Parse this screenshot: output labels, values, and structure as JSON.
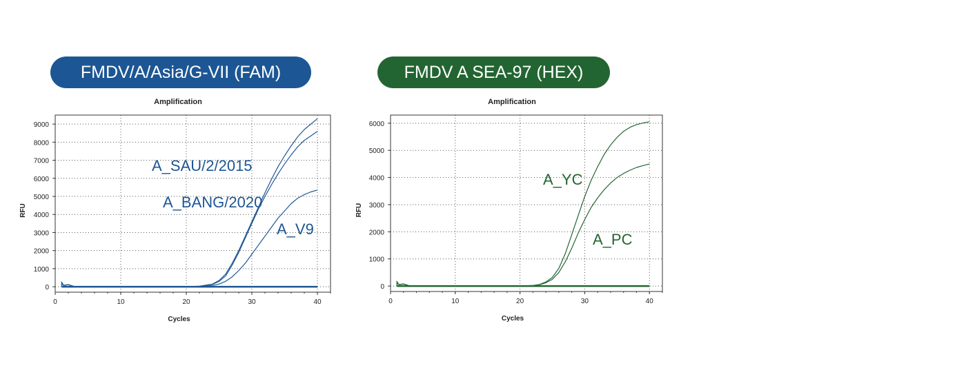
{
  "badges": [
    {
      "text": "FMDV/A/Asia/G-VII (FAM)",
      "color": "#1d5694"
    },
    {
      "text": "FMDV A SEA-97 (HEX)",
      "color": "#236532"
    }
  ],
  "chart_data": [
    {
      "type": "line",
      "title": "Amplification",
      "xlabel": "Cycles",
      "ylabel": "RFU",
      "xlim": [
        0,
        42
      ],
      "ylim": [
        -300,
        9500
      ],
      "xticks": [
        0,
        10,
        20,
        30,
        40
      ],
      "yticks": [
        0,
        1000,
        2000,
        3000,
        4000,
        5000,
        6000,
        7000,
        8000,
        9000
      ],
      "grid": true,
      "color": "#1d5694",
      "series": [
        {
          "name": "A_SAU/2/2015",
          "x": [
            1,
            5,
            10,
            15,
            20,
            22,
            24,
            25,
            26,
            27,
            28,
            29,
            30,
            31,
            32,
            33,
            34,
            35,
            36,
            37,
            38,
            39,
            40
          ],
          "y": [
            0,
            0,
            0,
            0,
            0,
            30,
            150,
            350,
            700,
            1300,
            2000,
            2800,
            3600,
            4400,
            5200,
            5950,
            6650,
            7250,
            7800,
            8300,
            8700,
            9000,
            9300
          ]
        },
        {
          "name": "A_BANG/2020",
          "x": [
            1,
            5,
            10,
            15,
            20,
            22,
            24,
            25,
            26,
            27,
            28,
            29,
            30,
            31,
            32,
            33,
            34,
            35,
            36,
            37,
            38,
            39,
            40
          ],
          "y": [
            0,
            0,
            0,
            0,
            0,
            30,
            130,
            300,
            600,
            1200,
            1900,
            2700,
            3500,
            4300,
            5000,
            5650,
            6250,
            6800,
            7300,
            7750,
            8100,
            8350,
            8600
          ]
        },
        {
          "name": "A_V9",
          "x": [
            1,
            5,
            10,
            15,
            20,
            22,
            24,
            25,
            26,
            27,
            28,
            29,
            30,
            31,
            32,
            33,
            34,
            35,
            36,
            37,
            38,
            39,
            40
          ],
          "y": [
            0,
            0,
            0,
            0,
            0,
            20,
            70,
            150,
            300,
            550,
            900,
            1300,
            1800,
            2300,
            2800,
            3300,
            3800,
            4200,
            4600,
            4900,
            5100,
            5250,
            5350
          ]
        },
        {
          "name": "",
          "x": [
            1,
            5,
            10,
            15,
            20,
            25,
            30,
            35,
            40
          ],
          "y": [
            0,
            0,
            0,
            0,
            0,
            0,
            0,
            0,
            0
          ]
        }
      ],
      "annotations": [
        {
          "text": "A_SAU/2/2015",
          "series": 0
        },
        {
          "text": "A_BANG/2020",
          "series": 1
        },
        {
          "text": "A_V9",
          "series": 2
        }
      ]
    },
    {
      "type": "line",
      "title": "Amplification",
      "xlabel": "Cycles",
      "ylabel": "RFU",
      "xlim": [
        0,
        42
      ],
      "ylim": [
        -200,
        6300
      ],
      "xticks": [
        0,
        10,
        20,
        30,
        40
      ],
      "yticks": [
        0,
        1000,
        2000,
        3000,
        4000,
        5000,
        6000
      ],
      "grid": true,
      "color": "#236532",
      "series": [
        {
          "name": "A_YC",
          "x": [
            1,
            5,
            10,
            15,
            20,
            22,
            23,
            24,
            25,
            26,
            27,
            28,
            29,
            30,
            31,
            32,
            33,
            34,
            35,
            36,
            37,
            38,
            39,
            40
          ],
          "y": [
            0,
            0,
            0,
            0,
            0,
            20,
            60,
            150,
            320,
            650,
            1200,
            1900,
            2600,
            3300,
            3900,
            4400,
            4850,
            5200,
            5480,
            5700,
            5850,
            5950,
            6010,
            6050
          ]
        },
        {
          "name": "A_PC",
          "x": [
            1,
            5,
            10,
            15,
            20,
            22,
            23,
            24,
            25,
            26,
            27,
            28,
            29,
            30,
            31,
            32,
            33,
            34,
            35,
            36,
            37,
            38,
            39,
            40
          ],
          "y": [
            0,
            0,
            0,
            0,
            0,
            20,
            50,
            120,
            250,
            500,
            900,
            1400,
            1950,
            2450,
            2900,
            3250,
            3550,
            3800,
            4000,
            4150,
            4270,
            4370,
            4440,
            4500
          ]
        },
        {
          "name": "",
          "x": [
            1,
            5,
            10,
            15,
            20,
            25,
            30,
            35,
            40
          ],
          "y": [
            0,
            0,
            0,
            0,
            0,
            0,
            0,
            0,
            0
          ]
        }
      ],
      "annotations": [
        {
          "text": "A_YC",
          "series": 0
        },
        {
          "text": "A_PC",
          "series": 1
        }
      ]
    }
  ]
}
